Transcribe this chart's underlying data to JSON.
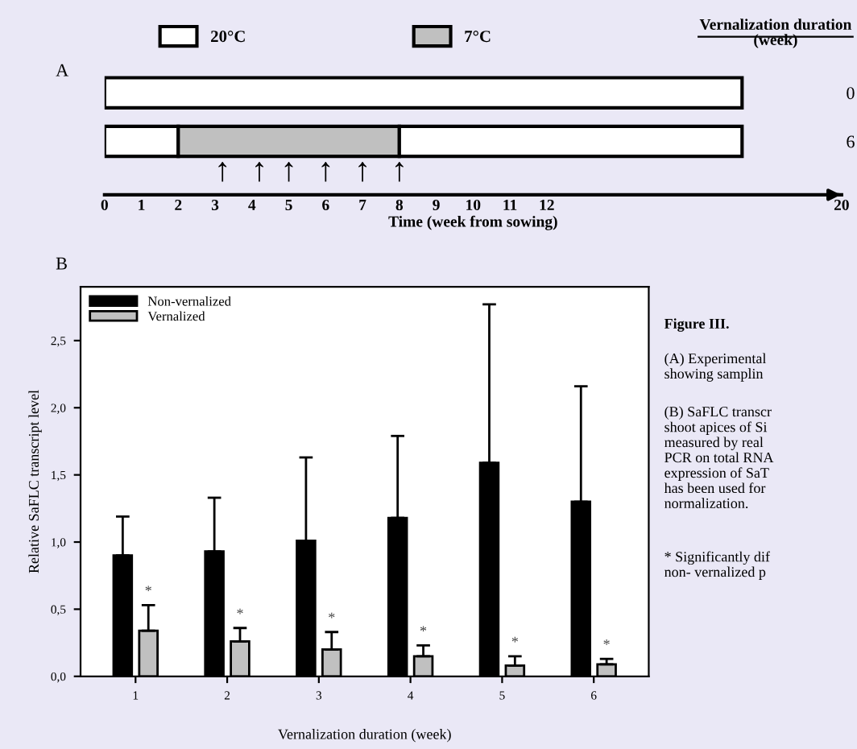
{
  "chart_data": [
    {
      "type": "bar",
      "orientation": "horizontal",
      "stacked": true,
      "categories": [
        "0",
        "6"
      ],
      "series": [
        {
          "name": "20°C",
          "color": "#ffffff",
          "values": [
            17.3,
            2
          ]
        },
        {
          "name": "7°C",
          "color": "#c0c0c0",
          "values": [
            0,
            6
          ]
        },
        {
          "color": "#ffffff",
          "values": [
            0,
            9.3
          ]
        }
      ],
      "xlim": [
        0,
        20
      ],
      "xticks": [
        0,
        1,
        2,
        3,
        4,
        5,
        6,
        7,
        8,
        9,
        10,
        11,
        12,
        20
      ],
      "xlabel": "Time (week from sowing)",
      "ylabel": "Vernalization duration\n(week)",
      "legend": "top",
      "grid": false,
      "annotations": [
        "A",
        {
          "text": "↑",
          "x": 3.2,
          "y": "6"
        },
        {
          "text": "↑",
          "x": 4.2,
          "y": "6"
        },
        {
          "text": "↑",
          "x": 5,
          "y": "6"
        },
        {
          "text": "↑",
          "x": 6,
          "y": "6"
        },
        {
          "text": "↑",
          "x": 7,
          "y": "6"
        },
        {
          "text": "↑",
          "x": 8,
          "y": "6"
        }
      ]
    },
    {
      "type": "bar",
      "categories": [
        "1",
        "2",
        "3",
        "4",
        "5",
        "6"
      ],
      "series": [
        {
          "name": "Non-vernalized",
          "color": "#000000",
          "values": [
            0.9,
            0.93,
            1.01,
            1.18,
            1.59,
            1.3
          ],
          "errors": [
            [
              0.9,
              1.19
            ],
            [
              0.93,
              1.33
            ],
            [
              1.01,
              1.63
            ],
            [
              1.18,
              1.79
            ],
            [
              1.59,
              2.77
            ],
            [
              1.3,
              2.16
            ]
          ]
        },
        {
          "name": "Vernalized",
          "color": "#c0c0c0",
          "values": [
            0.34,
            0.26,
            0.2,
            0.15,
            0.08,
            0.09
          ],
          "errors": [
            [
              0.34,
              0.53
            ],
            [
              0.26,
              0.36
            ],
            [
              0.2,
              0.33
            ],
            [
              0.15,
              0.23
            ],
            [
              0.08,
              0.15
            ],
            [
              0.09,
              0.13
            ]
          ]
        }
      ],
      "ylim": [
        0,
        2.9
      ],
      "yticks": [
        {
          "value": 0,
          "label": "0,0"
        },
        {
          "value": 0.5,
          "label": "0,5"
        },
        {
          "value": 1,
          "label": "1,0"
        },
        {
          "value": 1.5,
          "label": "1,5"
        },
        {
          "value": 2,
          "label": "2,0"
        },
        {
          "value": 2.5,
          "label": "2,5"
        }
      ],
      "ylabel": "Relative SaFLC transcript level",
      "xlabel": "Vernalization duration (week)",
      "legend": "top left",
      "grid": false,
      "annotations": [
        "B",
        {
          "text": "*",
          "x": "1",
          "y": 0.53
        },
        {
          "text": "*",
          "x": "2",
          "y": 0.36
        },
        {
          "text": "*",
          "x": "3",
          "y": 0.33
        },
        {
          "text": "*",
          "x": "4",
          "y": 0.23
        },
        {
          "text": "*",
          "x": "5",
          "y": 0.15
        },
        {
          "text": "*",
          "x": "6",
          "y": 0.13
        },
        "Figure III.",
        "(A) Experimental\nshowing samplin",
        "(B) SaFLC transcr\nshoot apices of Si\nmeasured by real\nPCR on total RNA\nexpression of SaT\nhas been used for\nnormalization.",
        "* Significantly dif\nnon- vernalized p"
      ]
    }
  ]
}
